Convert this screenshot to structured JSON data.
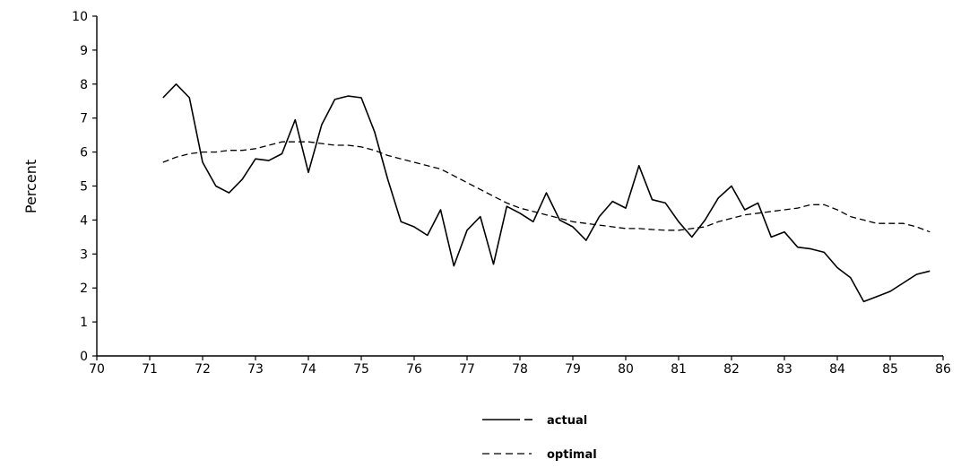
{
  "chart_data": {
    "type": "line",
    "title": "",
    "xlabel": "",
    "ylabel": "Percent",
    "xlim": [
      70,
      86
    ],
    "ylim": [
      0,
      10
    ],
    "x_ticks": [
      "70",
      "71",
      "72",
      "73",
      "74",
      "75",
      "76",
      "77",
      "78",
      "79",
      "80",
      "81",
      "82",
      "83",
      "84",
      "85",
      "86"
    ],
    "y_ticks": [
      "0",
      "1",
      "2",
      "3",
      "4",
      "5",
      "6",
      "7",
      "8",
      "9",
      "10"
    ],
    "grid": false,
    "legend_position": "bottom-center",
    "series": [
      {
        "name": "actual",
        "style": "solid",
        "color": "#000000",
        "x": [
          71.25,
          71.5,
          71.75,
          72.0,
          72.25,
          72.5,
          72.75,
          73.0,
          73.25,
          73.5,
          73.75,
          74.0,
          74.25,
          74.5,
          74.75,
          75.0,
          75.25,
          75.5,
          75.75,
          76.0,
          76.25,
          76.5,
          76.75,
          77.0,
          77.25,
          77.5,
          77.75,
          78.0,
          78.25,
          78.5,
          78.75,
          79.0,
          79.25,
          79.5,
          79.75,
          80.0,
          80.25,
          80.5,
          80.75,
          81.0,
          81.25,
          81.5,
          81.75,
          82.0,
          82.25,
          82.5,
          82.75,
          83.0,
          83.25,
          83.5,
          83.75,
          84.0,
          84.25,
          84.5,
          84.75,
          85.0,
          85.25,
          85.5,
          85.75
        ],
        "values": [
          7.6,
          8.0,
          7.6,
          5.7,
          5.0,
          4.8,
          5.2,
          5.8,
          5.75,
          5.95,
          6.95,
          5.4,
          6.8,
          7.55,
          7.65,
          7.6,
          6.6,
          5.2,
          3.95,
          3.8,
          3.55,
          4.3,
          2.65,
          3.7,
          4.1,
          2.7,
          4.4,
          4.2,
          3.95,
          4.8,
          4.0,
          3.8,
          3.4,
          4.1,
          4.55,
          4.35,
          5.6,
          4.6,
          4.5,
          3.95,
          3.5,
          4.0,
          4.65,
          5.0,
          4.3,
          4.5,
          3.5,
          3.65,
          3.2,
          3.15,
          3.05,
          2.6,
          2.3,
          1.6,
          1.75,
          1.9,
          2.15,
          2.4,
          2.5
        ]
      },
      {
        "name": "optimal",
        "style": "dashed",
        "color": "#000000",
        "x": [
          71.25,
          71.5,
          71.75,
          72.0,
          72.25,
          72.5,
          72.75,
          73.0,
          73.25,
          73.5,
          73.75,
          74.0,
          74.25,
          74.5,
          74.75,
          75.0,
          75.25,
          75.5,
          75.75,
          76.0,
          76.25,
          76.5,
          76.75,
          77.0,
          77.25,
          77.5,
          77.75,
          78.0,
          78.25,
          78.5,
          78.75,
          79.0,
          79.25,
          79.5,
          79.75,
          80.0,
          80.25,
          80.5,
          80.75,
          81.0,
          81.25,
          81.5,
          81.75,
          82.0,
          82.25,
          82.5,
          82.75,
          83.0,
          83.25,
          83.5,
          83.75,
          84.0,
          84.25,
          84.5,
          84.75,
          85.0,
          85.25,
          85.5,
          85.75
        ],
        "values": [
          5.7,
          5.85,
          5.95,
          6.0,
          6.0,
          6.05,
          6.05,
          6.1,
          6.2,
          6.3,
          6.3,
          6.3,
          6.25,
          6.2,
          6.2,
          6.15,
          6.05,
          5.9,
          5.8,
          5.7,
          5.6,
          5.5,
          5.3,
          5.1,
          4.9,
          4.7,
          4.5,
          4.35,
          4.25,
          4.15,
          4.05,
          3.95,
          3.9,
          3.85,
          3.8,
          3.75,
          3.75,
          3.72,
          3.7,
          3.7,
          3.75,
          3.8,
          3.95,
          4.05,
          4.15,
          4.2,
          4.25,
          4.3,
          4.35,
          4.45,
          4.45,
          4.3,
          4.1,
          4.0,
          3.9,
          3.9,
          3.9,
          3.8,
          3.65
        ]
      }
    ]
  }
}
